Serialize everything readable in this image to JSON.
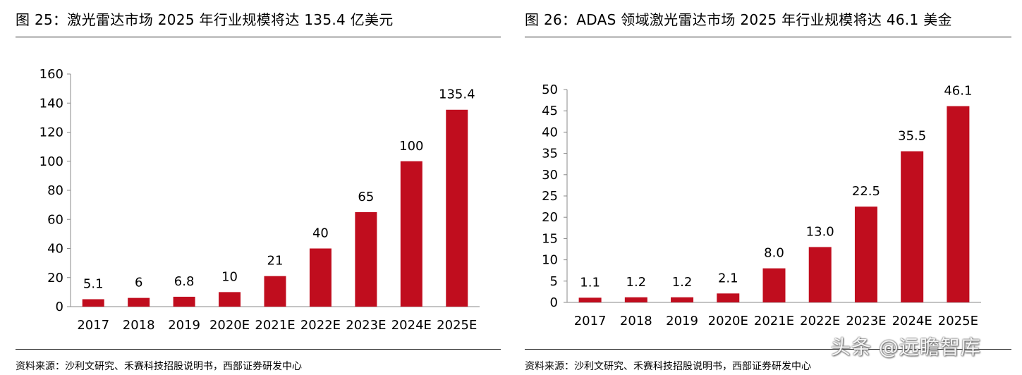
{
  "colors": {
    "bar": "#C00D1E",
    "axis": "#888888",
    "text": "#000000"
  },
  "left_panel": {
    "title": "图 25：激光雷达市场 2025 年行业规模将达 135.4 亿美元",
    "source": "资料来源：沙利文研究、禾赛科技招股说明书，西部证券研发中心"
  },
  "right_panel": {
    "title": "图 26：ADAS 领域激光雷达市场 2025 年行业规模将达 46.1 美金",
    "source": "资料来源：沙利文研究、禾赛科技招股说明书，西部证券研发中心"
  },
  "watermark": "头条 @远瞻智库",
  "chart_data": [
    {
      "type": "bar",
      "title": "",
      "categories": [
        "2017",
        "2018",
        "2019",
        "2020E",
        "2021E",
        "2022E",
        "2023E",
        "2024E",
        "2025E"
      ],
      "values": [
        5.1,
        6,
        6.8,
        10,
        21,
        40,
        65,
        100,
        135.4
      ],
      "value_labels": [
        "5.1",
        "6",
        "6.8",
        "10",
        "21",
        "40",
        "65",
        "100",
        "135.4"
      ],
      "ylim": [
        0,
        160
      ],
      "yticks": [
        "0",
        "20",
        "40",
        "60",
        "80",
        "100",
        "120",
        "140",
        "160"
      ],
      "xlabel": "",
      "ylabel": "",
      "grid": false,
      "legend": "none"
    },
    {
      "type": "bar",
      "title": "",
      "categories": [
        "2017",
        "2018",
        "2019",
        "2020E",
        "2021E",
        "2022E",
        "2023E",
        "2024E",
        "2025E"
      ],
      "values": [
        1.1,
        1.2,
        1.2,
        2.1,
        8.0,
        13.0,
        22.5,
        35.5,
        46.1
      ],
      "value_labels": [
        "1.1",
        "1.2",
        "1.2",
        "2.1",
        "8.0",
        "13.0",
        "22.5",
        "35.5",
        "46.1"
      ],
      "ylim": [
        0,
        50
      ],
      "yticks": [
        "0",
        "5",
        "10",
        "15",
        "20",
        "25",
        "30",
        "35",
        "40",
        "45",
        "50"
      ],
      "xlabel": "",
      "ylabel": "",
      "grid": false,
      "legend": "none"
    }
  ]
}
